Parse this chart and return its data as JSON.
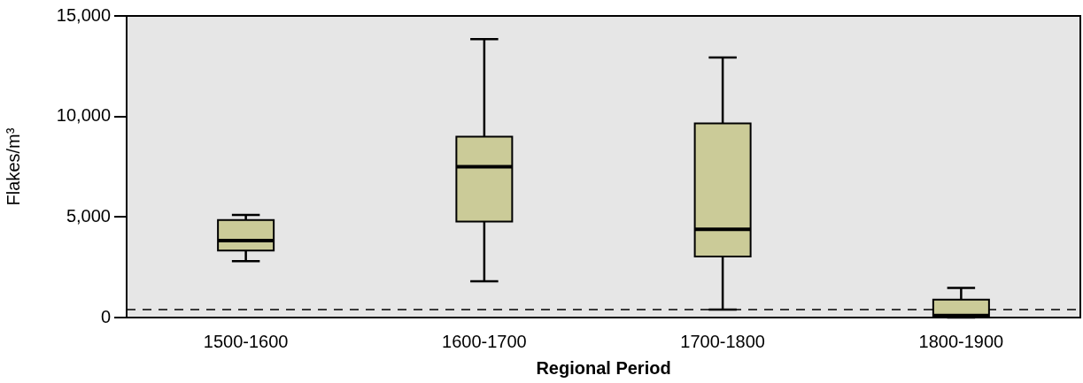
{
  "chart_data": {
    "type": "box",
    "xlabel": "Regional Period",
    "ylabel": "Flakes/m³",
    "categories": [
      "1500-1600",
      "1600-1700",
      "1700-1800",
      "1800-1900"
    ],
    "color": "#cbcb98",
    "boxes": [
      {
        "low": 2800,
        "q1": 3330,
        "median": 3830,
        "q3": 4850,
        "high": 5100
      },
      {
        "low": 1800,
        "q1": 4770,
        "median": 7500,
        "q3": 9000,
        "high": 13850
      },
      {
        "low": 400,
        "q1": 3040,
        "median": 4390,
        "q3": 9650,
        "high": 12930
      },
      {
        "low": 0,
        "q1": 0,
        "median": 100,
        "q3": 890,
        "high": 1470
      }
    ],
    "ylim": [
      0,
      15000
    ],
    "yticks": [
      0,
      {
        "value": 5000,
        "label": "5,000"
      },
      {
        "value": 10000,
        "label": "10,000"
      },
      {
        "value": 15000,
        "label": "15,000"
      }
    ],
    "ref_lines": [
      {
        "axis": "y",
        "value": 400,
        "color": "#000000",
        "line_style": "dashed"
      }
    ],
    "grid": false,
    "legend": false
  }
}
